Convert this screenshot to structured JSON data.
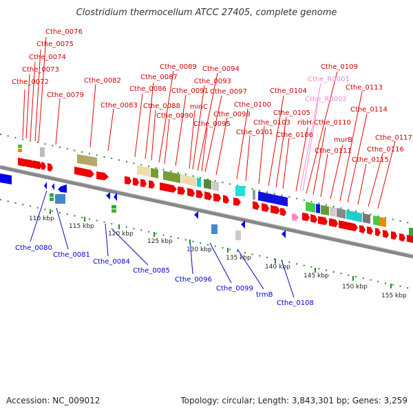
{
  "title": "Clostridium thermocellum ATCC 27405, complete genome",
  "footer": {
    "accession": "Accession: NC_009012",
    "summary": "Topology: circular; Length: 3,843,301 bp; Genes: 3,259"
  },
  "colors": {
    "plus_label": "#cc0000",
    "minus_label": "#0000cc",
    "rna_label": "#ee88cc",
    "plus_arrow": "#ee0000",
    "minus_arrow": "#0000ee",
    "rna_arrow": "#ff88cc",
    "backbone": "#888888",
    "dots": "#228822"
  },
  "ticks": [
    "110 kbp",
    "115 kbp",
    "120 kbp",
    "125 kbp",
    "130 kbp",
    "135 kbp",
    "140 kbp",
    "145 kbp",
    "150 kbp",
    "155 kbp"
  ],
  "plus_labels": [
    "Cthe_0072",
    "Cthe_0073",
    "Cthe_0074",
    "Cthe_0075",
    "Cthe_0076",
    "Cthe_0079",
    "Cthe_0082",
    "Cthe_0083",
    "Cthe_0086",
    "Cthe_0087",
    "Cthe_0088",
    "Cthe_0089",
    "Cthe_0090",
    "Cthe_0091",
    "minC",
    "Cthe_0093",
    "Cthe_0094",
    "Cthe_0095",
    "Cthe_0097",
    "Cthe_0098",
    "Cthe_0100",
    "Cthe_0101",
    "Cthe_0103",
    "Cthe_0104",
    "Cthe_0105",
    "Cthe_0106",
    "ribH",
    "Cthe_0109",
    "Cthe_0110",
    "Cthe_0111",
    "murB",
    "Cthe_0113",
    "Cthe_0114",
    "Cthe_0115",
    "Cthe_0116",
    "Cthe_0117"
  ],
  "rna_labels": [
    "Cthe_R0001",
    "Cthe_R0002"
  ],
  "minus_labels": [
    "Cthe_0080",
    "Cthe_0081",
    "Cthe_0084",
    "Cthe_0085",
    "Cthe_0096",
    "Cthe_0099",
    "trmB",
    "Cthe_0108"
  ]
}
